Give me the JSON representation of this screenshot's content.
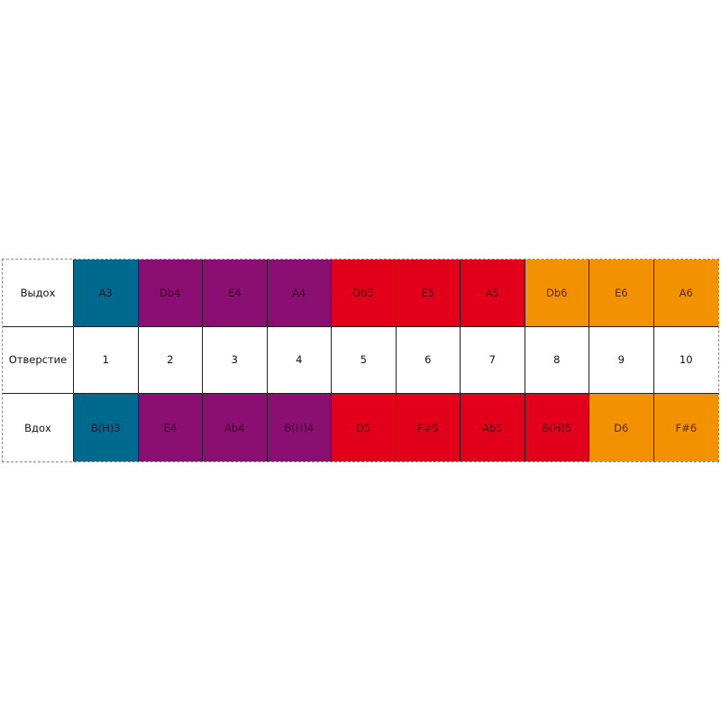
{
  "colors": {
    "teal": "#006A8E",
    "purple": "#8B0F73",
    "red": "#E2001A",
    "orange": "#F39200",
    "white": "#FFFFFF"
  },
  "rows": [
    {
      "label": "Выдох",
      "cells": [
        {
          "text": "A3",
          "color": "teal"
        },
        {
          "text": "Db4",
          "color": "purple"
        },
        {
          "text": "E4",
          "color": "purple"
        },
        {
          "text": "A4",
          "color": "purple"
        },
        {
          "text": "Db5",
          "color": "red"
        },
        {
          "text": "E5",
          "color": "red"
        },
        {
          "text": "A5",
          "color": "red"
        },
        {
          "text": "Db6",
          "color": "orange"
        },
        {
          "text": "E6",
          "color": "orange"
        },
        {
          "text": "A6",
          "color": "orange"
        }
      ]
    },
    {
      "label": "Отверстие",
      "cells": [
        {
          "text": "1",
          "color": "white"
        },
        {
          "text": "2",
          "color": "white"
        },
        {
          "text": "3",
          "color": "white"
        },
        {
          "text": "4",
          "color": "white"
        },
        {
          "text": "5",
          "color": "white"
        },
        {
          "text": "6",
          "color": "white"
        },
        {
          "text": "7",
          "color": "white"
        },
        {
          "text": "8",
          "color": "white"
        },
        {
          "text": "9",
          "color": "white"
        },
        {
          "text": "10",
          "color": "white"
        }
      ]
    },
    {
      "label": "Вдох",
      "cells": [
        {
          "text": "B(H)3",
          "color": "teal"
        },
        {
          "text": "E4",
          "color": "purple"
        },
        {
          "text": "Ab4",
          "color": "purple"
        },
        {
          "text": "B(H)4",
          "color": "purple"
        },
        {
          "text": "D5",
          "color": "red"
        },
        {
          "text": "F#5",
          "color": "red"
        },
        {
          "text": "Ab5",
          "color": "red"
        },
        {
          "text": "B(H)5",
          "color": "red"
        },
        {
          "text": "D6",
          "color": "orange"
        },
        {
          "text": "F#6",
          "color": "orange"
        }
      ]
    }
  ]
}
